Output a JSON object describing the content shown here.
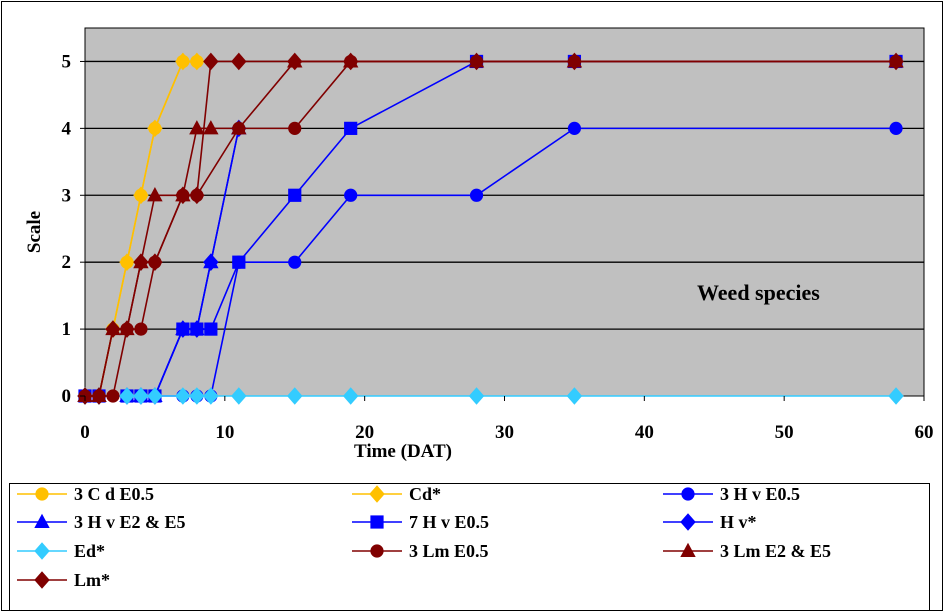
{
  "chart_data": {
    "type": "line",
    "xlabel": "Time (DAT)",
    "ylabel": "Scale",
    "annotation": "Weed species",
    "xlim": [
      0,
      60
    ],
    "ylim": [
      0,
      5.5
    ],
    "xticks": [
      "0",
      "10",
      "20",
      "30",
      "40",
      "50",
      "60"
    ],
    "yticks": [
      "0",
      "1",
      "2",
      "3",
      "4",
      "5"
    ],
    "grid": "horizontal",
    "plot_background": "#C0C0C0",
    "legend_position": "bottom",
    "series": [
      {
        "name": "3 C d E0.5",
        "color": "#FFC000",
        "marker": "circle",
        "x": [
          0,
          1,
          2,
          3,
          4,
          5,
          7,
          8
        ],
        "y": [
          0,
          0,
          1,
          2,
          3,
          4,
          5,
          5
        ]
      },
      {
        "name": "Cd*",
        "color": "#FFC000",
        "marker": "diamond",
        "x": [
          0,
          1,
          2,
          3,
          4,
          5,
          7,
          8
        ],
        "y": [
          0,
          0,
          1,
          2,
          3,
          4,
          5,
          5
        ]
      },
      {
        "name": "3 H v E0.5",
        "color": "#0000FF",
        "marker": "circle",
        "x": [
          0,
          1,
          3,
          4,
          5,
          7,
          8,
          9,
          11,
          15,
          19,
          28,
          35,
          58
        ],
        "y": [
          0,
          0,
          0,
          0,
          0,
          0,
          0,
          0,
          2,
          2,
          3,
          3,
          4,
          4
        ]
      },
      {
        "name": "3 H v E2 & E5",
        "color": "#0000FF",
        "marker": "triangle",
        "x": [
          0,
          1,
          3,
          4,
          5,
          7,
          8,
          9,
          11
        ],
        "y": [
          0,
          0,
          0,
          0,
          0,
          1,
          1,
          2,
          4
        ]
      },
      {
        "name": "7 H v E0.5",
        "color": "#0000FF",
        "marker": "square",
        "x": [
          0,
          1,
          3,
          4,
          5,
          7,
          8,
          9,
          11,
          15,
          19,
          28,
          35,
          58
        ],
        "y": [
          0,
          0,
          0,
          0,
          0,
          1,
          1,
          1,
          2,
          3,
          4,
          5,
          5,
          5
        ]
      },
      {
        "name": "H v*",
        "color": "#0000FF",
        "marker": "diamond",
        "x": [
          0,
          1,
          3,
          4,
          5,
          7,
          8,
          9,
          11
        ],
        "y": [
          0,
          0,
          0,
          0,
          0,
          1,
          1,
          2,
          4
        ]
      },
      {
        "name": "Ed*",
        "color": "#33CCFF",
        "marker": "diamond",
        "x": [
          0,
          1,
          3,
          4,
          5,
          7,
          8,
          9,
          11,
          15,
          19,
          28,
          35,
          58
        ],
        "y": [
          0,
          0,
          0,
          0,
          0,
          0,
          0,
          0,
          0,
          0,
          0,
          0,
          0,
          0
        ]
      },
      {
        "name": "3 Lm E0.5",
        "color": "#800000",
        "marker": "circle",
        "x": [
          0,
          1,
          2,
          3,
          4,
          5,
          7,
          8,
          11,
          15,
          19,
          28,
          35,
          58
        ],
        "y": [
          0,
          0,
          0,
          1,
          1,
          2,
          3,
          3,
          4,
          4,
          5,
          5,
          5,
          5
        ]
      },
      {
        "name": "3 Lm E2 & E5",
        "color": "#800000",
        "marker": "triangle",
        "x": [
          0,
          1,
          2,
          3,
          4,
          5,
          7,
          8,
          9,
          11,
          15,
          19,
          28,
          35,
          58
        ],
        "y": [
          0,
          0,
          1,
          1,
          2,
          3,
          3,
          4,
          4,
          4,
          5,
          5,
          5,
          5,
          5
        ]
      },
      {
        "name": "Lm*",
        "color": "#800000",
        "marker": "diamond",
        "x": [
          0,
          1,
          2,
          3,
          4,
          5,
          7,
          8,
          9,
          11,
          15,
          19,
          28,
          35,
          58
        ],
        "y": [
          0,
          0,
          1,
          1,
          2,
          2,
          3,
          3,
          5,
          5,
          5,
          5,
          5,
          5,
          5
        ]
      }
    ]
  }
}
